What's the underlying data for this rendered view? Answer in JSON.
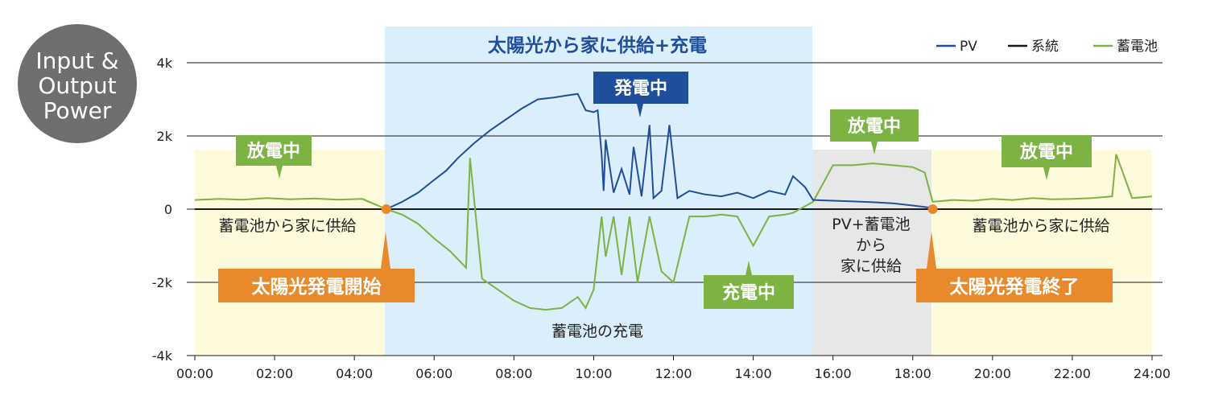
{
  "colors": {
    "pv": "#1f4e9c",
    "grid": "#1a1a1a",
    "battery": "#7cb342",
    "night_bg": "#fdfbdc",
    "day_bg": "#dbeefb",
    "evening_bg": "#e7e7e7",
    "badge_green": "#7cb342",
    "badge_blue": "#1f4e9c",
    "badge_orange": "#e8892b",
    "corner_badge": "#6e6e6e"
  },
  "corner_badge": {
    "line1": "Input &",
    "line2": "Output",
    "line3": "Power"
  },
  "regions": {
    "day_title": "太陽光から家に供給+充電",
    "night_left_label": "蓄電池から家に供給",
    "night_right_label": "蓄電池から家に供給",
    "evening_label_1": "PV+蓄電池",
    "evening_label_2": "から",
    "evening_label_3": "家に供給",
    "day_battery_label": "蓄電池の充電"
  },
  "callouts": {
    "discharging_left": "放電中",
    "generating": "発電中",
    "discharging_evening": "放電中",
    "discharging_right": "放電中",
    "charging": "充電中",
    "solar_start": "太陽光発電開始",
    "solar_end": "太陽光発電終了"
  },
  "chart_data": {
    "type": "line",
    "xlabel": "",
    "ylabel": "",
    "xlim": [
      0,
      24
    ],
    "ylim": [
      -4000,
      4000
    ],
    "x_ticks": [
      "00:00",
      "02:00",
      "04:00",
      "06:00",
      "08:00",
      "10:00",
      "12:00",
      "14:00",
      "16:00",
      "18:00",
      "20:00",
      "22:00",
      "24:00"
    ],
    "y_ticks": [
      "4k",
      "2k",
      "0",
      "-2k",
      "-4k"
    ],
    "legend_placement": "top-right",
    "grid": true,
    "events": [
      {
        "x": 4.8,
        "y": 0
      },
      {
        "x": 18.5,
        "y": 0
      }
    ],
    "series": [
      {
        "name": "PV",
        "x": [
          4.8,
          5.2,
          5.6,
          6.0,
          6.3,
          6.6,
          7.0,
          7.4,
          7.8,
          8.2,
          8.6,
          9.0,
          9.3,
          9.6,
          9.8,
          10.0,
          10.1,
          10.2,
          10.25,
          10.3,
          10.5,
          10.7,
          10.9,
          11.0,
          11.2,
          11.4,
          11.5,
          11.7,
          11.9,
          12.1,
          12.4,
          12.8,
          13.2,
          13.6,
          14.0,
          14.4,
          14.8,
          15.0,
          15.3,
          15.5,
          16.0,
          16.5,
          17.0,
          17.5,
          18.0,
          18.5
        ],
        "y": [
          0,
          200,
          450,
          800,
          1050,
          1400,
          1800,
          2150,
          2450,
          2750,
          3000,
          3050,
          3100,
          3150,
          2700,
          2650,
          2700,
          1500,
          500,
          1900,
          450,
          1100,
          400,
          1700,
          350,
          2300,
          300,
          500,
          2300,
          300,
          500,
          400,
          350,
          450,
          300,
          500,
          400,
          900,
          600,
          250,
          230,
          210,
          190,
          160,
          100,
          30
        ]
      },
      {
        "name": "系統",
        "x": [
          0,
          24
        ],
        "y": [
          0,
          0
        ]
      },
      {
        "name": "蓄電池",
        "x": [
          0,
          0.6,
          1.2,
          1.8,
          2.4,
          3.0,
          3.6,
          4.2,
          4.8,
          5.2,
          5.6,
          6.0,
          6.4,
          6.8,
          6.9,
          7.2,
          7.6,
          8.0,
          8.4,
          8.8,
          9.2,
          9.6,
          9.8,
          10.0,
          10.1,
          10.2,
          10.3,
          10.5,
          10.7,
          10.9,
          11.1,
          11.4,
          11.7,
          12.0,
          12.4,
          12.8,
          13.2,
          13.6,
          14.0,
          14.4,
          14.8,
          15.0,
          15.5,
          16.0,
          16.5,
          17.0,
          17.5,
          18.0,
          18.3,
          18.5,
          19.0,
          19.5,
          20.0,
          20.5,
          21.0,
          21.5,
          22.0,
          22.5,
          23.0,
          23.1,
          23.5,
          24.0
        ],
        "y": [
          250,
          280,
          260,
          300,
          270,
          290,
          260,
          280,
          0,
          -150,
          -400,
          -800,
          -1150,
          -1600,
          1400,
          -1900,
          -2200,
          -2500,
          -2700,
          -2750,
          -2700,
          -2400,
          -2700,
          -2200,
          -1200,
          -200,
          -1300,
          -200,
          -1800,
          -200,
          -2000,
          -200,
          -1700,
          -2000,
          -200,
          -200,
          -150,
          -200,
          -1000,
          -200,
          -150,
          -100,
          200,
          1200,
          1200,
          1250,
          1200,
          1150,
          1000,
          200,
          250,
          230,
          280,
          250,
          300,
          270,
          280,
          300,
          350,
          1500,
          300,
          350
        ]
      }
    ]
  }
}
